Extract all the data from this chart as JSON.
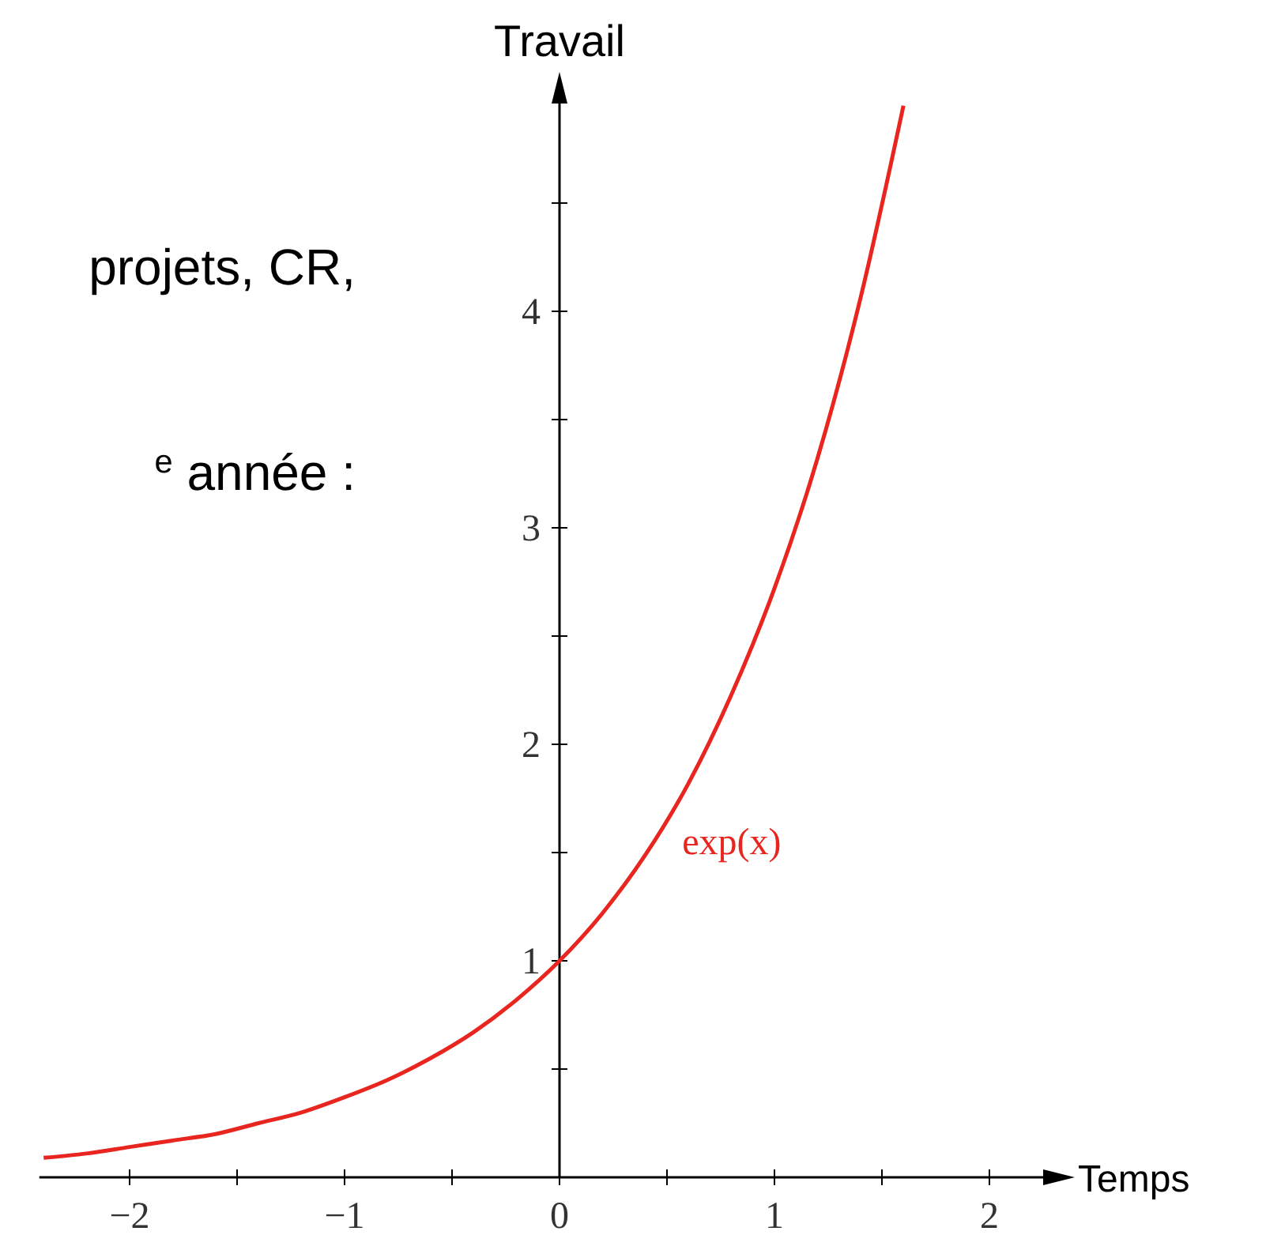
{
  "chart_data": {
    "type": "line",
    "xlabel": "Temps",
    "ylabel": "Travail",
    "annotations": [
      "projets, CR,",
      "$^{e}$ année :"
    ],
    "x": [
      -2.4,
      -2.2,
      -2.0,
      -1.8,
      -1.6,
      -1.4,
      -1.2,
      -1.0,
      -0.8,
      -0.6,
      -0.4,
      -0.2,
      0,
      0.2,
      0.4,
      0.6,
      0.8,
      1.0,
      1.2,
      1.4,
      1.6
    ],
    "series": [
      {
        "name": "exp(x)",
        "color": "#e8251f",
        "values": [
          0.09,
          0.11,
          0.14,
          0.17,
          0.2,
          0.25,
          0.3,
          0.37,
          0.45,
          0.55,
          0.67,
          0.82,
          1,
          1.22,
          1.49,
          1.82,
          2.23,
          2.72,
          3.32,
          4.06,
          4.95
        ]
      }
    ],
    "xlim": [
      -2.42,
      2.25
    ],
    "ylim": [
      0,
      4.96
    ],
    "xticks": [
      {
        "value": -2,
        "label": "−2"
      },
      {
        "value": -1.5,
        "label": null
      },
      {
        "value": -1,
        "label": "−1"
      },
      {
        "value": -0.5,
        "label": null
      },
      0,
      {
        "value": 0.5,
        "label": null
      },
      1,
      {
        "value": 1.5,
        "label": null
      },
      2
    ],
    "yticks": [
      {
        "value": 0.5,
        "label": null
      },
      1,
      {
        "value": 1.5,
        "label": null
      },
      2,
      {
        "value": 2.5,
        "label": null
      },
      3,
      {
        "value": 3.5,
        "label": null
      },
      4,
      {
        "value": 4.5,
        "label": null
      }
    ],
    "marker": "none",
    "line_style": "solid"
  }
}
